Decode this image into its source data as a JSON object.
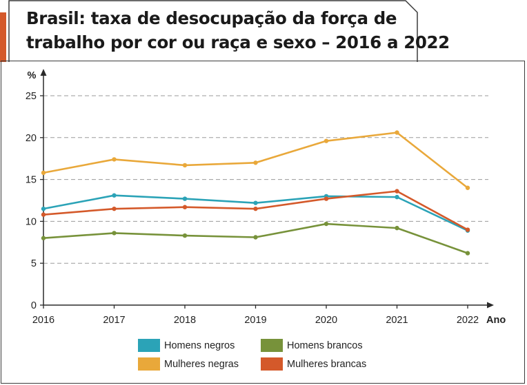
{
  "title": {
    "line1": "Brasil: taxa de desocupação da força de",
    "line2": "trabalho por cor ou raça e sexo – 2016 a 2022"
  },
  "colors": {
    "accent": "#d4592a",
    "axis": "#2a2a2a",
    "grid": "#9a9a9a",
    "border": "#3a3a3a"
  },
  "chart_data": {
    "type": "line",
    "title": "Brasil: taxa de desocupação da força de trabalho por cor ou raça e sexo – 2016 a 2022",
    "xlabel": "Ano",
    "ylabel": "%",
    "categories": [
      "2016",
      "2017",
      "2018",
      "2019",
      "2020",
      "2021",
      "2022"
    ],
    "y_ticks": [
      "0",
      "5",
      "10",
      "15",
      "20",
      "25"
    ],
    "ylim": [
      0,
      27
    ],
    "grid": true,
    "series": [
      {
        "name": "Homens negros",
        "color": "#2ba3b7",
        "values": [
          11.5,
          13.1,
          12.7,
          12.2,
          13.0,
          12.9,
          8.9
        ]
      },
      {
        "name": "Homens brancos",
        "color": "#77923a",
        "values": [
          8.0,
          8.6,
          8.3,
          8.1,
          9.7,
          9.2,
          6.2
        ]
      },
      {
        "name": "Mulheres negras",
        "color": "#e9a83a",
        "values": [
          15.8,
          17.4,
          16.7,
          17.0,
          19.6,
          20.6,
          14.0
        ]
      },
      {
        "name": "Mulheres brancas",
        "color": "#d4592a",
        "values": [
          10.8,
          11.5,
          11.7,
          11.5,
          12.7,
          13.6,
          9.0
        ]
      }
    ],
    "legend_position": "bottom"
  }
}
